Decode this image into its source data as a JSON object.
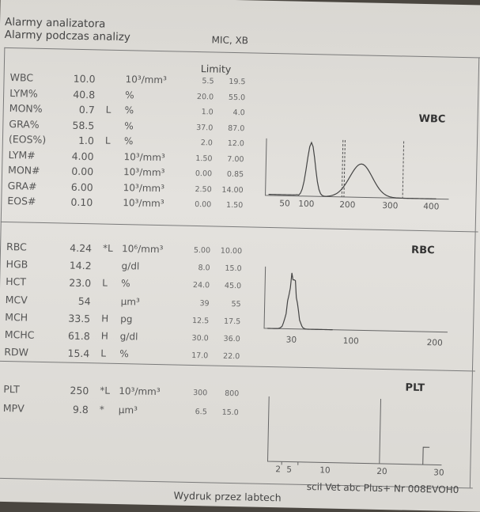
{
  "header": {
    "line1": "Alarmy analizatora",
    "line2": "Alarmy podczas analizy",
    "alarm_codes": "MIC, XB",
    "limits_heading": "Limity"
  },
  "wbc_section": {
    "title": "WBC",
    "rows": [
      {
        "name": "WBC",
        "value": "10.0",
        "flag": "",
        "unit": "10³/mm³",
        "low": "5.5",
        "high": "19.5"
      },
      {
        "name": "LYM%",
        "value": "40.8",
        "flag": "",
        "unit": "%",
        "low": "20.0",
        "high": "55.0"
      },
      {
        "name": "MON%",
        "value": "0.7",
        "flag": "L",
        "unit": "%",
        "low": "1.0",
        "high": "4.0"
      },
      {
        "name": "GRA%",
        "value": "58.5",
        "flag": "",
        "unit": "%",
        "low": "37.0",
        "high": "87.0"
      },
      {
        "name": "(EOS%)",
        "value": "1.0",
        "flag": "L",
        "unit": "%",
        "low": "2.0",
        "high": "12.0"
      },
      {
        "name": "LYM#",
        "value": "4.00",
        "flag": "",
        "unit": "10³/mm³",
        "low": "1.50",
        "high": "7.00"
      },
      {
        "name": "MON#",
        "value": "0.00",
        "flag": "",
        "unit": "10³/mm³",
        "low": "0.00",
        "high": "0.85"
      },
      {
        "name": "GRA#",
        "value": "6.00",
        "flag": "",
        "unit": "10³/mm³",
        "low": "2.50",
        "high": "14.00"
      },
      {
        "name": "EOS#",
        "value": "0.10",
        "flag": "",
        "unit": "10³/mm³",
        "low": "0.00",
        "high": "1.50"
      }
    ],
    "axis_ticks": [
      "50",
      "100",
      "200",
      "300",
      "400"
    ]
  },
  "rbc_section": {
    "title": "RBC",
    "rows": [
      {
        "name": "RBC",
        "value": "4.24",
        "flag": "*L",
        "unit": "10⁶/mm³",
        "low": "5.00",
        "high": "10.00"
      },
      {
        "name": "HGB",
        "value": "14.2",
        "flag": "",
        "unit": "g/dl",
        "low": "8.0",
        "high": "15.0"
      },
      {
        "name": "HCT",
        "value": "23.0",
        "flag": "L",
        "unit": "%",
        "low": "24.0",
        "high": "45.0"
      },
      {
        "name": "MCV",
        "value": "54",
        "flag": "",
        "unit": "µm³",
        "low": "39",
        "high": "55"
      },
      {
        "name": "MCH",
        "value": "33.5",
        "flag": "H",
        "unit": "pg",
        "low": "12.5",
        "high": "17.5"
      },
      {
        "name": "MCHC",
        "value": "61.8",
        "flag": "H",
        "unit": "g/dl",
        "low": "30.0",
        "high": "36.0"
      },
      {
        "name": "RDW",
        "value": "15.4",
        "flag": "L",
        "unit": "%",
        "low": "17.0",
        "high": "22.0"
      }
    ],
    "axis_ticks": [
      "30",
      "100",
      "200"
    ]
  },
  "plt_section": {
    "title": "PLT",
    "rows": [
      {
        "name": "PLT",
        "value": "250",
        "flag": "*L",
        "unit": "10³/mm³",
        "low": "300",
        "high": "800"
      },
      {
        "name": "MPV",
        "value": "9.8",
        "flag": "*",
        "unit": "µm³",
        "low": "6.5",
        "high": "15.0"
      }
    ],
    "axis_ticks": [
      "2",
      "5",
      "10",
      "20",
      "30"
    ]
  },
  "footer": {
    "printed_by": "Wydruk przez labtech",
    "device": "scil Vet abc Plus+ Nr 008EVOH0"
  },
  "histograms": {
    "wbc": {
      "x_range": [
        0,
        400
      ],
      "peaks": [
        {
          "x": 100,
          "rel_height": 1.0
        },
        {
          "x": 220,
          "rel_height": 0.62
        }
      ],
      "thresholds": [
        175,
        180,
        320
      ]
    },
    "rbc": {
      "x_range": [
        0,
        200
      ],
      "peak_x": 30,
      "max_x": 60
    },
    "plt": {
      "x_range": [
        0,
        30
      ],
      "threshold": 20,
      "marker": 28
    }
  },
  "colors": {
    "paper": "#dedcd7",
    "ink": "#555555",
    "rule": "#7a7a7a",
    "background": "#4a4640"
  }
}
